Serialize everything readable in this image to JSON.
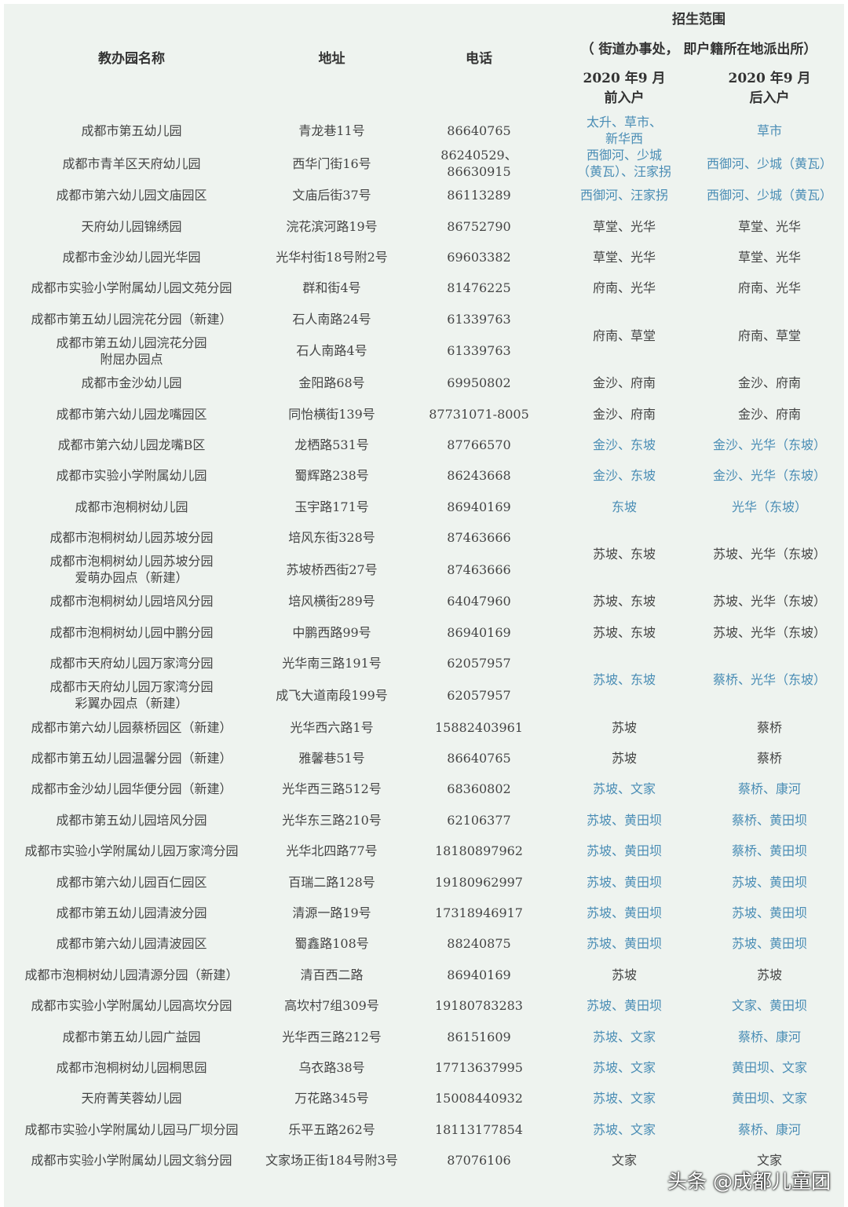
{
  "header": {
    "name": "教办园名称",
    "address": "地址",
    "phone": "电话",
    "scope_title": "招生范围",
    "scope_sub": "（ 街道办事处， 即户籍所在地派出所）",
    "before": "2020 年9 月\n前入户",
    "after": "2020 年9 月\n后入户"
  },
  "colors": {
    "background": "#eef3ef",
    "text": "#444444",
    "highlight": "#4a8db5"
  },
  "rows": [
    {
      "name": "成都市第五幼儿园",
      "address": "青龙巷11号",
      "phone": "86640765",
      "before": "太升、草市、\n新华西",
      "after": "草市",
      "blue": true
    },
    {
      "name": "成都市青羊区天府幼儿园",
      "address": "西华门街16号",
      "phone": "86240529、\n86630915",
      "before": "西御河、少城\n（黄瓦）、汪家拐",
      "after": "西御河、少城（黄瓦）",
      "blue": true
    },
    {
      "name": "成都市第六幼儿园文庙园区",
      "address": "文庙后街37号",
      "phone": "86113289",
      "before": "西御河、汪家拐",
      "after": "西御河、少城（黄瓦）",
      "blue": true
    },
    {
      "name": "天府幼儿园锦绣园",
      "address": "浣花滨河路19号",
      "phone": "86752790",
      "before": "草堂、光华",
      "after": "草堂、光华",
      "blue": false
    },
    {
      "name": "成都市金沙幼儿园光华园",
      "address": "光华村街18号附2号",
      "phone": "69603382",
      "before": "草堂、光华",
      "after": "草堂、光华",
      "blue": false
    },
    {
      "name": "成都市实验小学附属幼儿园文苑分园",
      "address": "群和街4号",
      "phone": "81476225",
      "before": "府南、光华",
      "after": "府南、光华",
      "blue": false
    },
    {
      "name": "成都市第五幼儿园浣花分园（新建）",
      "address": "石人南路24号",
      "phone": "61339763",
      "before": "府南、草堂",
      "after": "府南、草堂",
      "blue": false,
      "span": 2
    },
    {
      "name": "成都市第五幼儿园浣花分园\n附屈办园点",
      "address": "石人南路4号",
      "phone": "61339763",
      "merged": true
    },
    {
      "name": "成都市金沙幼儿园",
      "address": "金阳路68号",
      "phone": "69950802",
      "before": "金沙、府南",
      "after": "金沙、府南",
      "blue": false
    },
    {
      "name": "成都市第六幼儿园龙嘴园区",
      "address": "同怡横街139号",
      "phone": "87731071-8005",
      "before": "金沙、府南",
      "after": "金沙、府南",
      "blue": false
    },
    {
      "name": "成都市第六幼儿园龙嘴B区",
      "address": "龙栖路531号",
      "phone": "87766570",
      "before": "金沙、东坡",
      "after": "金沙、光华（东坡）",
      "blue": true
    },
    {
      "name": "成都市实验小学附属幼儿园",
      "address": "蜀辉路238号",
      "phone": "86243668",
      "before": "金沙、东坡",
      "after": "金沙、光华（东坡）",
      "blue": true
    },
    {
      "name": "成都市泡桐树幼儿园",
      "address": "玉宇路171号",
      "phone": "86940169",
      "before": "东坡",
      "after": "光华（东坡）",
      "blue": true
    },
    {
      "name": "成都市泡桐树幼儿园苏坡分园",
      "address": "培风东街328号",
      "phone": "87463666",
      "before": "苏坡、东坡",
      "after": "苏坡、光华（东坡）",
      "blue": false,
      "span": 2
    },
    {
      "name": "成都市泡桐树幼儿园苏坡分园\n爱萌办园点（新建）",
      "address": "苏坡桥西街27号",
      "phone": "87463666",
      "merged": true
    },
    {
      "name": "成都市泡桐树幼儿园培风分园",
      "address": "培风横街289号",
      "phone": "64047960",
      "before": "苏坡、东坡",
      "after": "苏坡、光华（东坡）",
      "blue": false
    },
    {
      "name": "成都市泡桐树幼儿园中鹏分园",
      "address": "中鹏西路99号",
      "phone": "86940169",
      "before": "苏坡、东坡",
      "after": "苏坡、光华（东坡）",
      "blue": false
    },
    {
      "name": "成都市天府幼儿园万家湾分园",
      "address": "光华南三路191号",
      "phone": "62057957",
      "before": "苏坡、东坡",
      "after": "蔡桥、光华（东坡）",
      "blue": true,
      "span": 2
    },
    {
      "name": "成都市天府幼儿园万家湾分园\n彩翼办园点（新建）",
      "address": "成飞大道南段199号",
      "phone": "62057957",
      "merged": true
    },
    {
      "name": "成都市第六幼儿园蔡桥园区（新建）",
      "address": "光华西六路1号",
      "phone": "15882403961",
      "before": "苏坡",
      "after": "蔡桥",
      "blue": false
    },
    {
      "name": "成都市第五幼儿园温馨分园（新建）",
      "address": "雅馨巷51号",
      "phone": "86640765",
      "before": "苏坡",
      "after": "蔡桥",
      "blue": false
    },
    {
      "name": "成都市金沙幼儿园华便分园（新建）",
      "address": "光华西三路512号",
      "phone": "68360802",
      "before": "苏坡、文家",
      "after": "蔡桥、康河",
      "blue": true
    },
    {
      "name": "成都市第五幼儿园培风分园",
      "address": "光华东三路210号",
      "phone": "62106377",
      "before": "苏坡、黄田坝",
      "after": "蔡桥、黄田坝",
      "blue": true
    },
    {
      "name": "成都市实验小学附属幼儿园万家湾分园",
      "address": "光华北四路77号",
      "phone": "18180897962",
      "before": "苏坡、黄田坝",
      "after": "蔡桥、黄田坝",
      "blue": true
    },
    {
      "name": "成都市第六幼儿园百仁园区",
      "address": "百瑞二路128号",
      "phone": "19180962997",
      "before": "苏坡、黄田坝",
      "after": "苏坡、黄田坝",
      "blue": true
    },
    {
      "name": "成都市第五幼儿园清波分园",
      "address": "清源一路19号",
      "phone": "17318946917",
      "before": "苏坡、黄田坝",
      "after": "苏坡、黄田坝",
      "blue": true
    },
    {
      "name": "成都市第六幼儿园清波园区",
      "address": "蜀鑫路108号",
      "phone": "88240875",
      "before": "苏坡、黄田坝",
      "after": "苏坡、黄田坝",
      "blue": true
    },
    {
      "name": "成都市泡桐树幼儿园清源分园（新建）",
      "address": "清百西二路",
      "phone": "86940169",
      "before": "苏坡",
      "after": "苏坡",
      "blue": false
    },
    {
      "name": "成都市实验小学附属幼儿园高坎分园",
      "address": "高坎村7组309号",
      "phone": "19180783283",
      "before": "苏坡、黄田坝",
      "after": "文家、黄田坝",
      "blue": true
    },
    {
      "name": "成都市第五幼儿园广益园",
      "address": "光华西三路212号",
      "phone": "86151609",
      "before": "苏坡、文家",
      "after": "蔡桥、康河",
      "blue": true
    },
    {
      "name": "成都市泡桐树幼儿园桐思园",
      "address": "乌衣路38号",
      "phone": "17713637995",
      "before": "苏坡、文家",
      "after": "黄田坝、文家",
      "blue": true
    },
    {
      "name": "天府菁芙蓉幼儿园",
      "address": "万花路345号",
      "phone": "15008440932",
      "before": "苏坡、文家",
      "after": "黄田坝、文家",
      "blue": true
    },
    {
      "name": "成都市实验小学附属幼儿园马厂坝分园",
      "address": "乐平五路262号",
      "phone": "18113177854",
      "before": "苏坡、文家",
      "after": "蔡桥、康河",
      "blue": true
    },
    {
      "name": "成都市实验小学附属幼儿园文翁分园",
      "address": "文家场正街184号附3号",
      "phone": "87076106",
      "before": "文家",
      "after": "文家",
      "blue": false
    }
  ],
  "credit": "头条 @成都儿童团"
}
